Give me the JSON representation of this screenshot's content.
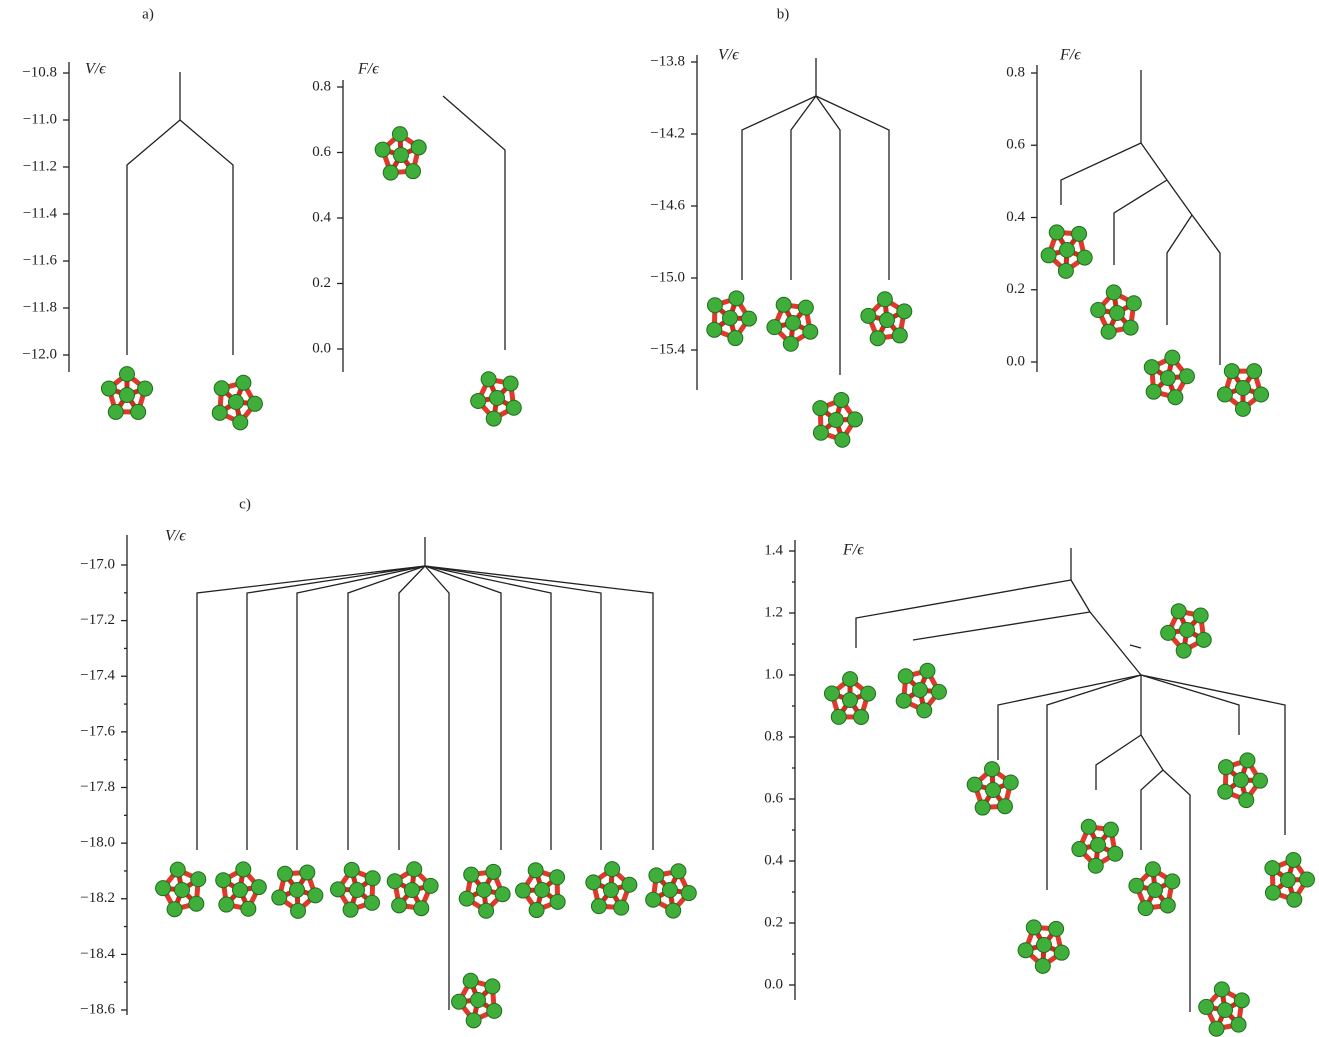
{
  "panels": [
    {
      "label": "a)",
      "plots": [
        {
          "axis_label": "V/ϵ",
          "ticks": [
            "−10.8",
            "−11.0",
            "−11.2",
            "−11.4",
            "−11.6",
            "−11.8",
            "−12.0"
          ]
        },
        {
          "axis_label": "F/ϵ",
          "ticks": [
            "0.8",
            "0.6",
            "0.4",
            "0.2",
            "0.0"
          ]
        }
      ]
    },
    {
      "label": "b)",
      "plots": [
        {
          "axis_label": "V/ϵ",
          "ticks": [
            "−13.8",
            "−14.2",
            "−14.6",
            "−15.0",
            "−15.4"
          ]
        },
        {
          "axis_label": "F/ϵ",
          "ticks": [
            "0.8",
            "0.6",
            "0.4",
            "0.2",
            "0.0"
          ]
        }
      ]
    },
    {
      "label": "c)",
      "plots": [
        {
          "axis_label": "V/ϵ",
          "ticks": [
            "−17.0",
            "−17.2",
            "−17.4",
            "−17.6",
            "−17.8",
            "−18.0",
            "−18.2",
            "−18.4",
            "−18.6"
          ]
        },
        {
          "axis_label": "F/ϵ",
          "ticks": [
            "1.4",
            "1.2",
            "1.0",
            "0.8",
            "0.6",
            "0.4",
            "0.2",
            "0.0"
          ]
        }
      ]
    }
  ]
}
